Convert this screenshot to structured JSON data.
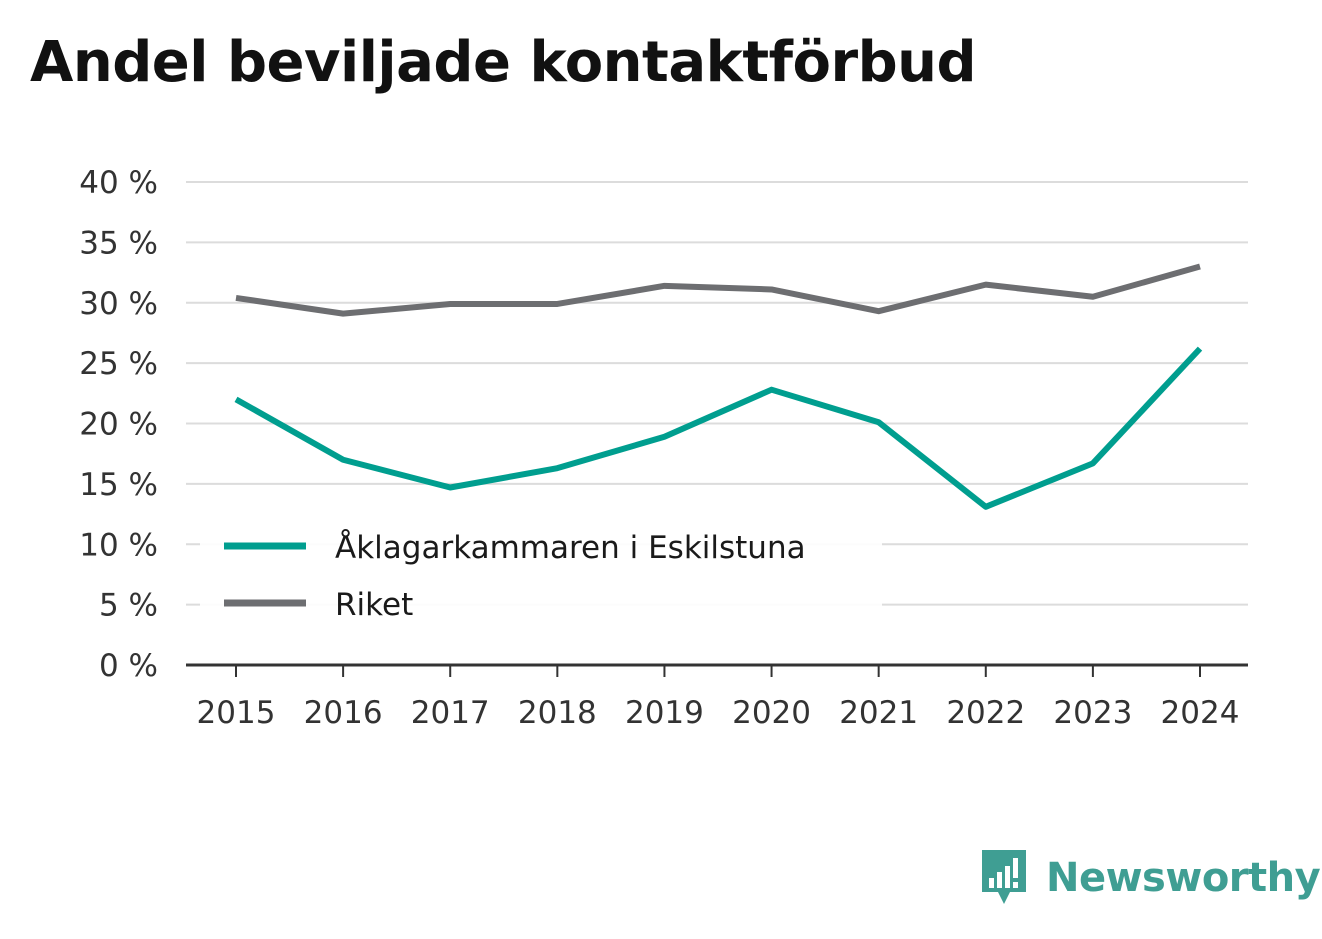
{
  "title": "Andel beviljade kontaktförbud",
  "brand": {
    "name": "Newsworthy",
    "icon": "newsworthy-logo-icon",
    "color": "#3f9e93"
  },
  "chart_data": {
    "type": "line",
    "title": "Andel beviljade kontaktförbud",
    "xlabel": "",
    "ylabel": "",
    "categories": [
      "2015",
      "2016",
      "2017",
      "2018",
      "2019",
      "2020",
      "2021",
      "2022",
      "2023",
      "2024"
    ],
    "series": [
      {
        "name": "Åklagarkammaren i Eskilstuna",
        "color": "#009e8f",
        "values": [
          22.0,
          17.0,
          14.7,
          16.3,
          18.9,
          22.8,
          20.1,
          13.1,
          16.7,
          26.2
        ]
      },
      {
        "name": "Riket",
        "color": "#6d6e71",
        "values": [
          30.4,
          29.1,
          29.9,
          29.9,
          31.4,
          31.1,
          29.3,
          31.5,
          30.5,
          33.0
        ]
      }
    ],
    "ylim": [
      0,
      40
    ],
    "yticks": [
      0,
      5,
      10,
      15,
      20,
      25,
      30,
      35,
      40
    ],
    "ytick_labels": [
      "0 %",
      "5 %",
      "10 %",
      "15 %",
      "20 %",
      "25 %",
      "30 %",
      "35 %",
      "40 %"
    ],
    "grid": true,
    "legend_position": "bottom-left"
  }
}
